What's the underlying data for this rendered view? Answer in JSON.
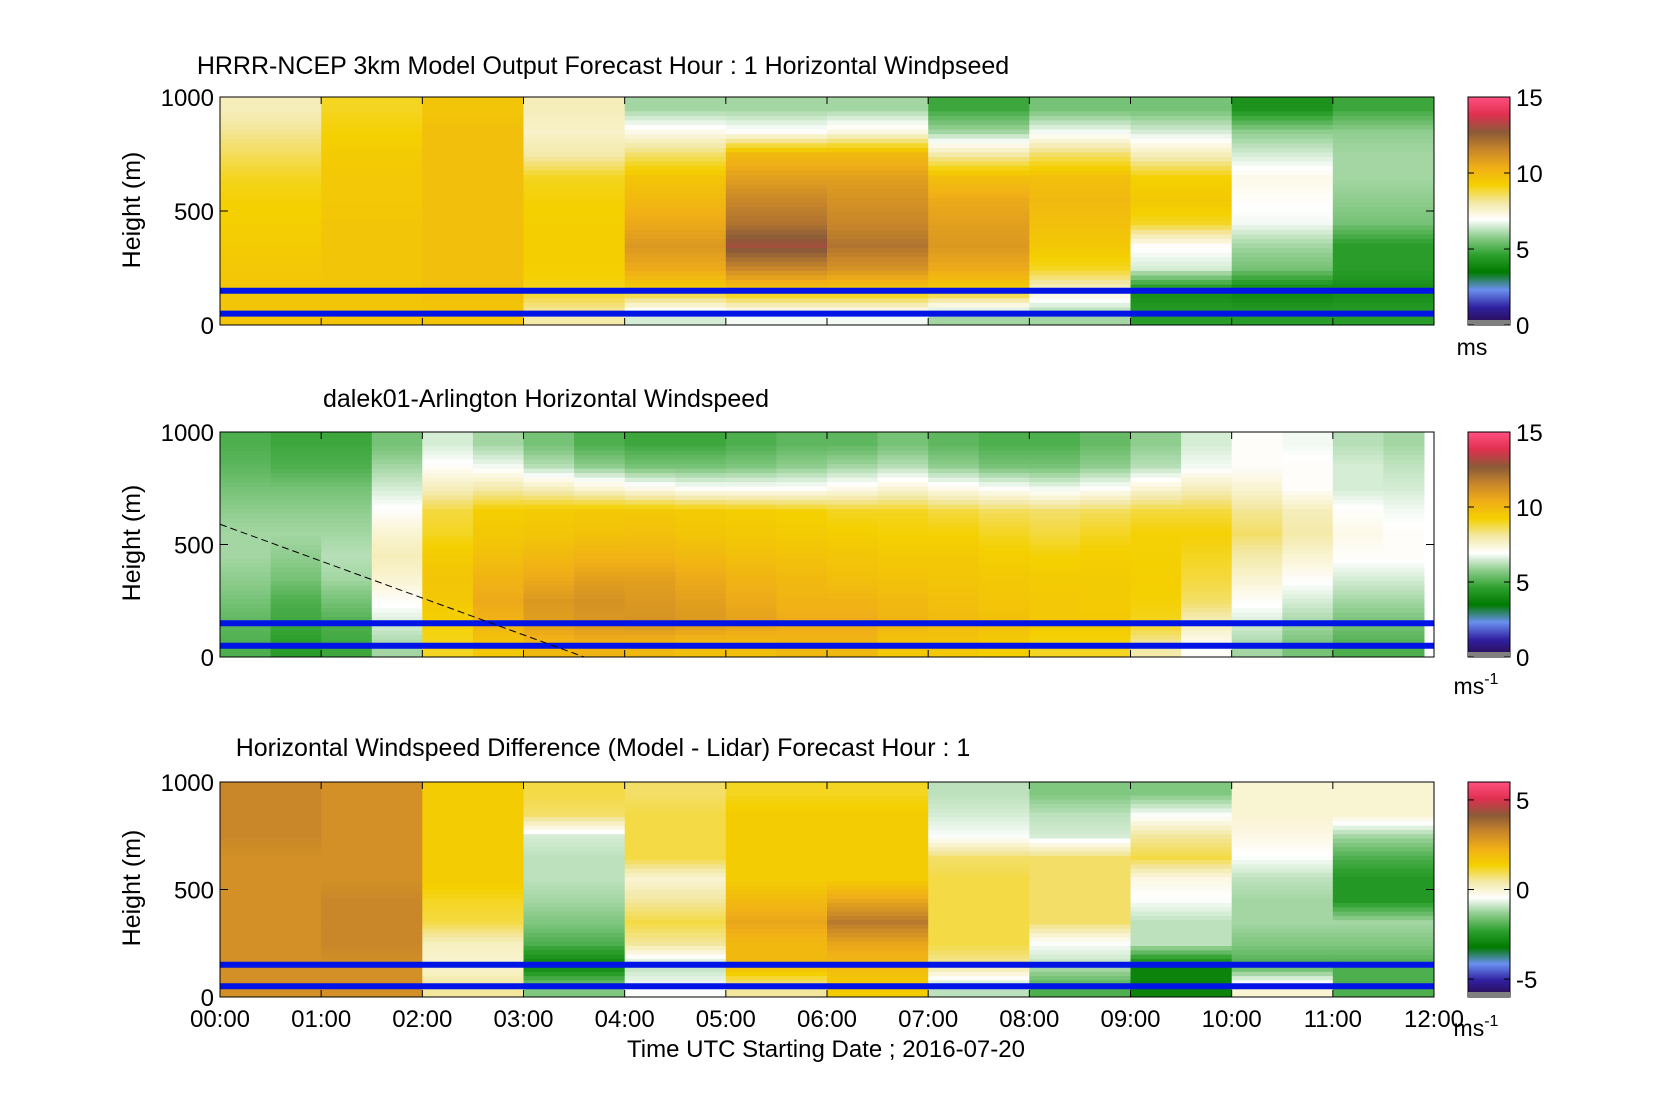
{
  "colors": {
    "colormap": [
      "#2a0a4a",
      "#3020a0",
      "#6a8ff0",
      "#007a00",
      "#2ea02e",
      "#8ccc8c",
      "#ffffff",
      "#f3e8a4",
      "#f4d000",
      "#f0ae18",
      "#c8862a",
      "#8b5a38",
      "#e03050",
      "#ff5080"
    ],
    "overlay_line": "#0014e6",
    "background": "#ffffff"
  },
  "chart_data": [
    {
      "type": "heatmap",
      "title": "HRRR-NCEP 3km Model Output   Forecast Hour : 1 Horizontal Windpseed",
      "ylabel": "Height (m)",
      "xlabel": "",
      "ylim": [
        0,
        1000
      ],
      "yticks": [
        0,
        500,
        1000
      ],
      "xlim": [
        0,
        12
      ],
      "colorbar": {
        "ticks": [
          0,
          5,
          10,
          15
        ],
        "range": [
          0,
          15
        ],
        "unit": "ms",
        "unit_sup": ""
      },
      "x_hours": [
        0,
        1,
        2,
        3,
        4,
        5,
        6,
        7,
        8,
        9,
        10,
        11
      ],
      "heights_m": [
        50,
        150,
        250,
        350,
        450,
        550,
        650,
        750,
        850,
        950
      ],
      "z": [
        [
          9.6,
          9.6,
          9.6,
          8.0,
          6.5,
          6.8,
          6.8,
          6.0,
          6.0,
          4.5,
          4.5,
          4.5
        ],
        [
          9.6,
          9.6,
          9.8,
          9.0,
          9.2,
          9.5,
          9.5,
          9.3,
          7.5,
          4.0,
          3.8,
          4.0
        ],
        [
          9.5,
          9.6,
          9.8,
          9.3,
          10.5,
          11.5,
          11.2,
          10.5,
          9.0,
          6.5,
          5.5,
          4.5
        ],
        [
          9.4,
          9.6,
          9.8,
          9.3,
          11.0,
          13.0,
          12.0,
          11.0,
          9.5,
          7.0,
          6.0,
          4.5
        ],
        [
          9.3,
          9.6,
          9.8,
          9.3,
          10.5,
          12.0,
          11.5,
          10.8,
          9.8,
          9.0,
          6.8,
          5.5
        ],
        [
          9.2,
          9.5,
          9.8,
          9.2,
          10.0,
          11.5,
          11.2,
          10.5,
          10.0,
          9.5,
          7.0,
          5.8
        ],
        [
          9.0,
          9.5,
          9.8,
          9.0,
          9.6,
          10.8,
          10.8,
          9.8,
          9.8,
          9.2,
          7.2,
          6.0
        ],
        [
          8.6,
          9.4,
          9.8,
          8.0,
          8.5,
          10.0,
          10.0,
          8.0,
          8.5,
          7.8,
          6.5,
          6.0
        ],
        [
          8.2,
          9.2,
          9.8,
          7.6,
          7.2,
          7.0,
          7.3,
          6.0,
          6.8,
          6.5,
          5.8,
          5.8
        ],
        [
          7.8,
          9.0,
          9.6,
          7.8,
          6.0,
          6.0,
          6.0,
          4.8,
          5.5,
          5.5,
          4.2,
          4.8
        ]
      ]
    },
    {
      "type": "heatmap",
      "title": "dalek01-Arlington  Horizontal Windspeed",
      "ylabel": "Height (m)",
      "xlabel": "",
      "ylim": [
        0,
        1000
      ],
      "yticks": [
        0,
        500,
        1000
      ],
      "xlim": [
        0,
        12
      ],
      "colorbar": {
        "ticks": [
          0,
          5,
          10,
          15
        ],
        "range": [
          0,
          15
        ],
        "unit": "ms",
        "unit_sup": "-1"
      },
      "x_hours": [
        0,
        0.5,
        1,
        1.5,
        2,
        2.5,
        3,
        3.5,
        4,
        4.5,
        5,
        5.5,
        6,
        6.5,
        7,
        7.5,
        8,
        8.5,
        9,
        9.5,
        10,
        10.5,
        11,
        11.5
      ],
      "heights_m": [
        50,
        150,
        250,
        350,
        450,
        550,
        650,
        750,
        850,
        950
      ],
      "z": [
        [
          5.0,
          4.5,
          4.8,
          6.0,
          9.0,
          9.5,
          10.0,
          10.2,
          10.0,
          9.8,
          9.8,
          10.0,
          10.0,
          9.5,
          9.5,
          9.3,
          9.0,
          9.0,
          8.0,
          7.0,
          6.0,
          5.5,
          5.0,
          5.0
        ],
        [
          5.2,
          4.8,
          5.0,
          6.5,
          9.2,
          10.2,
          10.8,
          11.0,
          11.2,
          11.0,
          10.8,
          10.5,
          10.5,
          10.2,
          10.0,
          9.8,
          9.5,
          9.5,
          9.0,
          7.8,
          6.5,
          6.0,
          5.5,
          5.5
        ],
        [
          5.5,
          5.0,
          5.5,
          7.0,
          9.5,
          10.5,
          11.0,
          11.2,
          11.0,
          10.8,
          10.5,
          10.2,
          10.2,
          10.0,
          9.8,
          9.6,
          9.5,
          9.4,
          9.2,
          8.5,
          7.0,
          6.5,
          6.0,
          6.0
        ],
        [
          5.8,
          5.5,
          6.0,
          7.5,
          9.6,
          10.2,
          10.5,
          10.8,
          10.8,
          10.5,
          10.2,
          10.0,
          9.8,
          9.7,
          9.6,
          9.5,
          9.4,
          9.4,
          9.3,
          8.8,
          7.5,
          7.0,
          6.5,
          6.5
        ],
        [
          6.0,
          5.8,
          6.2,
          7.8,
          9.4,
          9.8,
          10.0,
          10.2,
          10.2,
          10.0,
          9.8,
          9.7,
          9.6,
          9.5,
          9.5,
          9.3,
          9.2,
          9.3,
          9.2,
          9.0,
          8.0,
          7.5,
          7.0,
          7.0
        ],
        [
          6.0,
          6.0,
          6.0,
          7.5,
          9.0,
          9.5,
          9.6,
          9.7,
          9.8,
          9.6,
          9.5,
          9.4,
          9.3,
          9.2,
          9.2,
          9.0,
          8.8,
          9.0,
          9.2,
          9.2,
          8.5,
          8.0,
          7.2,
          7.0
        ],
        [
          5.8,
          5.8,
          5.8,
          7.0,
          8.8,
          9.3,
          9.4,
          9.5,
          9.5,
          9.4,
          9.3,
          9.2,
          9.0,
          9.0,
          8.8,
          8.6,
          8.5,
          8.6,
          8.8,
          8.8,
          8.2,
          7.8,
          7.0,
          6.8
        ],
        [
          5.5,
          5.5,
          5.5,
          6.5,
          7.8,
          8.0,
          7.8,
          7.5,
          7.2,
          7.0,
          7.0,
          7.0,
          7.2,
          7.5,
          7.2,
          7.0,
          6.8,
          7.0,
          7.5,
          7.8,
          7.5,
          7.0,
          6.5,
          6.5
        ],
        [
          5.2,
          5.0,
          5.0,
          6.0,
          7.0,
          6.8,
          6.2,
          5.8,
          5.5,
          5.5,
          5.6,
          5.8,
          6.0,
          6.2,
          5.8,
          5.5,
          5.5,
          5.8,
          6.2,
          6.8,
          7.0,
          7.0,
          6.5,
          6.3
        ],
        [
          5.0,
          4.8,
          4.8,
          5.5,
          6.5,
          6.0,
          5.5,
          5.0,
          4.8,
          4.8,
          5.0,
          5.2,
          5.2,
          5.5,
          5.2,
          5.0,
          5.0,
          5.3,
          5.8,
          6.5,
          7.0,
          6.8,
          6.2,
          6.0
        ]
      ]
    },
    {
      "type": "heatmap",
      "title": "Horizontal Windspeed Difference (Model - Lidar) Forecast Hour : 1",
      "ylabel": "Height (m)",
      "xlabel": "Time UTC  Starting Date ; 2016-07-20",
      "xticks": [
        "00:00",
        "01:00",
        "02:00",
        "03:00",
        "04:00",
        "05:00",
        "06:00",
        "07:00",
        "08:00",
        "09:00",
        "10:00",
        "11:00",
        "12:00"
      ],
      "ylim": [
        0,
        1000
      ],
      "yticks": [
        0,
        500,
        1000
      ],
      "xlim": [
        0,
        12
      ],
      "colorbar": {
        "ticks": [
          -5,
          0,
          5
        ],
        "range": [
          -6,
          6
        ],
        "unit": "ms",
        "unit_sup": "-1"
      },
      "x_hours": [
        0,
        1,
        2,
        3,
        4,
        5,
        6,
        7,
        8,
        9,
        10,
        11
      ],
      "heights_m": [
        50,
        150,
        250,
        350,
        450,
        550,
        650,
        750,
        850,
        950
      ],
      "z": [
        [
          3.0,
          3.0,
          0.5,
          -1.5,
          -0.5,
          0.5,
          1.5,
          -1.0,
          -2.0,
          -3.0,
          0.0,
          -2.0
        ],
        [
          3.0,
          3.0,
          0.0,
          -3.0,
          -1.0,
          2.0,
          2.0,
          0.5,
          -1.0,
          -3.0,
          -2.0,
          -2.0
        ],
        [
          3.0,
          3.2,
          0.2,
          -2.0,
          0.5,
          2.0,
          2.5,
          1.0,
          -0.5,
          -1.0,
          -1.5,
          -1.5
        ],
        [
          3.0,
          3.2,
          1.0,
          -1.5,
          1.0,
          2.5,
          3.5,
          1.0,
          0.8,
          -1.0,
          -1.2,
          -1.2
        ],
        [
          3.0,
          3.2,
          1.2,
          -1.2,
          0.5,
          2.0,
          2.5,
          1.0,
          0.8,
          -0.5,
          -1.2,
          -2.5
        ],
        [
          3.0,
          3.0,
          1.5,
          -1.0,
          0.0,
          1.5,
          1.5,
          1.0,
          0.8,
          -0.2,
          -1.0,
          -2.5
        ],
        [
          3.0,
          3.0,
          1.5,
          -1.0,
          1.0,
          1.5,
          1.5,
          0.8,
          0.8,
          1.0,
          -0.5,
          -2.0
        ],
        [
          3.2,
          3.0,
          1.5,
          -0.8,
          1.0,
          1.5,
          1.5,
          -0.5,
          -0.8,
          0.5,
          -0.2,
          -1.2
        ],
        [
          3.2,
          3.0,
          1.5,
          0.8,
          1.0,
          1.5,
          1.5,
          -0.8,
          -1.0,
          -0.5,
          0.0,
          0.0
        ],
        [
          3.2,
          3.0,
          1.5,
          1.0,
          0.8,
          1.2,
          1.2,
          -1.0,
          -1.5,
          -1.5,
          0.0,
          0.0
        ]
      ]
    }
  ]
}
